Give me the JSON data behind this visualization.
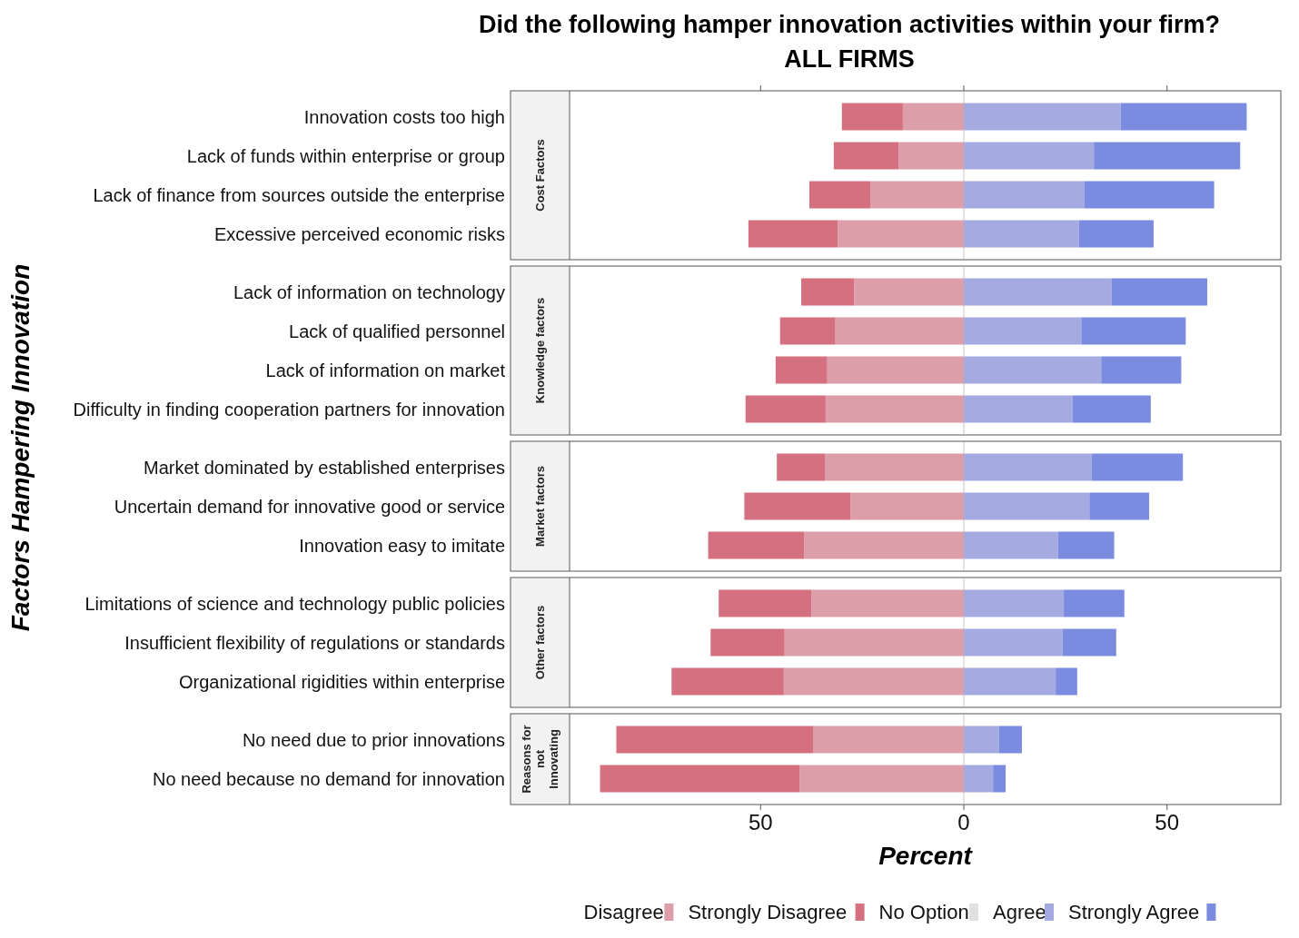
{
  "chart_data": [
    {
      "type": "bar",
      "orientation": "horizontal",
      "stacked": true,
      "title": "Did the following hamper innovation activities within your firm?\nALL FIRMS",
      "subtitle": "Cost Factors",
      "ylabel": "Factors Hampering Innovation",
      "legend": "bottom",
      "tick_labels": "y",
      "xlim": [
        -97,
        78
      ],
      "xticks": [
        {
          "value": -50,
          "label": null
        },
        {
          "value": 0,
          "label": null
        },
        {
          "value": 50,
          "label": null
        }
      ],
      "ref_lines": [
        {
          "axis": "x",
          "value": 0,
          "color": "#d9d9d9"
        }
      ],
      "categories": [
        "Innovation costs too high",
        "Lack of funds within enterprise or group",
        "Lack of finance from sources outside the enterprise",
        "Excessive perceived economic risks"
      ],
      "series": [
        {
          "name": "Disagree",
          "color": "#dc9ea8",
          "values": [
            -15,
            -16,
            -23,
            -31
          ]
        },
        {
          "name": "Strongly Disagree",
          "color": "#d4707f",
          "values": [
            -15,
            -16,
            -15,
            -22
          ]
        },
        {
          "name": "No Option",
          "color": "#e0e0e0",
          "values": [
            0,
            0,
            0,
            0
          ]
        },
        {
          "name": "Agree",
          "color": "#a5abe0",
          "values": [
            38.6,
            32,
            29.6,
            28.3
          ]
        },
        {
          "name": "Strongly Agree",
          "color": "#7b8ce0",
          "values": [
            31,
            36,
            32,
            18.4
          ]
        }
      ]
    },
    {
      "type": "bar",
      "orientation": "horizontal",
      "stacked": true,
      "subtitle": "Knowledge factors",
      "tick_labels": "y",
      "xlim": [
        -97,
        78
      ],
      "ref_lines": [
        {
          "axis": "x",
          "value": 0,
          "color": "#d9d9d9"
        }
      ],
      "categories": [
        "Lack of information on technology",
        "Lack of qualified personnel",
        "Lack of information on market",
        "Difficulty in finding cooperation partners for innovation"
      ],
      "series": [
        {
          "color": "#dc9ea8",
          "values": [
            -27,
            -31.6,
            -33.6,
            -34
          ]
        },
        {
          "color": "#d4707f",
          "values": [
            -13,
            -13.6,
            -12.7,
            -19.7
          ]
        },
        {
          "color": "#a5abe0",
          "values": [
            36.4,
            28.9,
            33.8,
            26.8
          ]
        },
        {
          "color": "#7b8ce0",
          "values": [
            23.5,
            25.7,
            19.7,
            19.2
          ]
        }
      ]
    },
    {
      "type": "bar",
      "orientation": "horizontal",
      "stacked": true,
      "subtitle": "Market factors",
      "tick_labels": "y",
      "xlim": [
        -97,
        78
      ],
      "ref_lines": [
        {
          "axis": "x",
          "value": 0,
          "color": "#d9d9d9"
        }
      ],
      "categories": [
        "Market dominated by established enterprises",
        "Uncertain demand for innovative good or service",
        "Innovation easy to imitate"
      ],
      "series": [
        {
          "color": "#dc9ea8",
          "values": [
            -34.2,
            -27.9,
            -39.3
          ]
        },
        {
          "color": "#d4707f",
          "values": [
            -11.8,
            -26.1,
            -23.6
          ]
        },
        {
          "color": "#a5abe0",
          "values": [
            31.4,
            30.9,
            23.2
          ]
        },
        {
          "color": "#7b8ce0",
          "values": [
            22.5,
            14.7,
            13.8
          ]
        }
      ]
    },
    {
      "type": "bar",
      "orientation": "horizontal",
      "stacked": true,
      "subtitle": "Other factors",
      "tick_labels": "y",
      "xlim": [
        -97,
        78
      ],
      "ref_lines": [
        {
          "axis": "x",
          "value": 0,
          "color": "#d9d9d9"
        }
      ],
      "categories": [
        "Limitations of science and technology public policies",
        "Insufficient flexibility of regulations or standards",
        "Organizational rigidities within enterprise"
      ],
      "series": [
        {
          "color": "#dc9ea8",
          "values": [
            -37.5,
            -44.1,
            -44.3
          ]
        },
        {
          "color": "#d4707f",
          "values": [
            -22.8,
            -18.2,
            -27.6
          ]
        },
        {
          "color": "#a5abe0",
          "values": [
            24.6,
            24.3,
            22.6
          ]
        },
        {
          "color": "#7b8ce0",
          "values": [
            14.9,
            13.2,
            5.3
          ]
        }
      ]
    },
    {
      "type": "bar",
      "orientation": "horizontal",
      "stacked": true,
      "subtitle": "Reasons for not Innovating",
      "xlabel": "Percent",
      "xlim": [
        -97,
        78
      ],
      "xticks": [
        {
          "value": -50,
          "label": "50"
        },
        0,
        50
      ],
      "ref_lines": [
        {
          "axis": "x",
          "value": 0,
          "color": "#d9d9d9"
        }
      ],
      "categories": [
        "No need due to prior innovations",
        "No need because no demand for innovation"
      ],
      "series": [
        {
          "color": "#dc9ea8",
          "values": [
            -37.1,
            -40.4
          ]
        },
        {
          "color": "#d4707f",
          "values": [
            -48.4,
            -49.1
          ]
        },
        {
          "color": "#a5abe0",
          "values": [
            8.6,
            7.2
          ]
        },
        {
          "color": "#7b8ce0",
          "values": [
            5.7,
            3.1
          ]
        }
      ]
    }
  ]
}
